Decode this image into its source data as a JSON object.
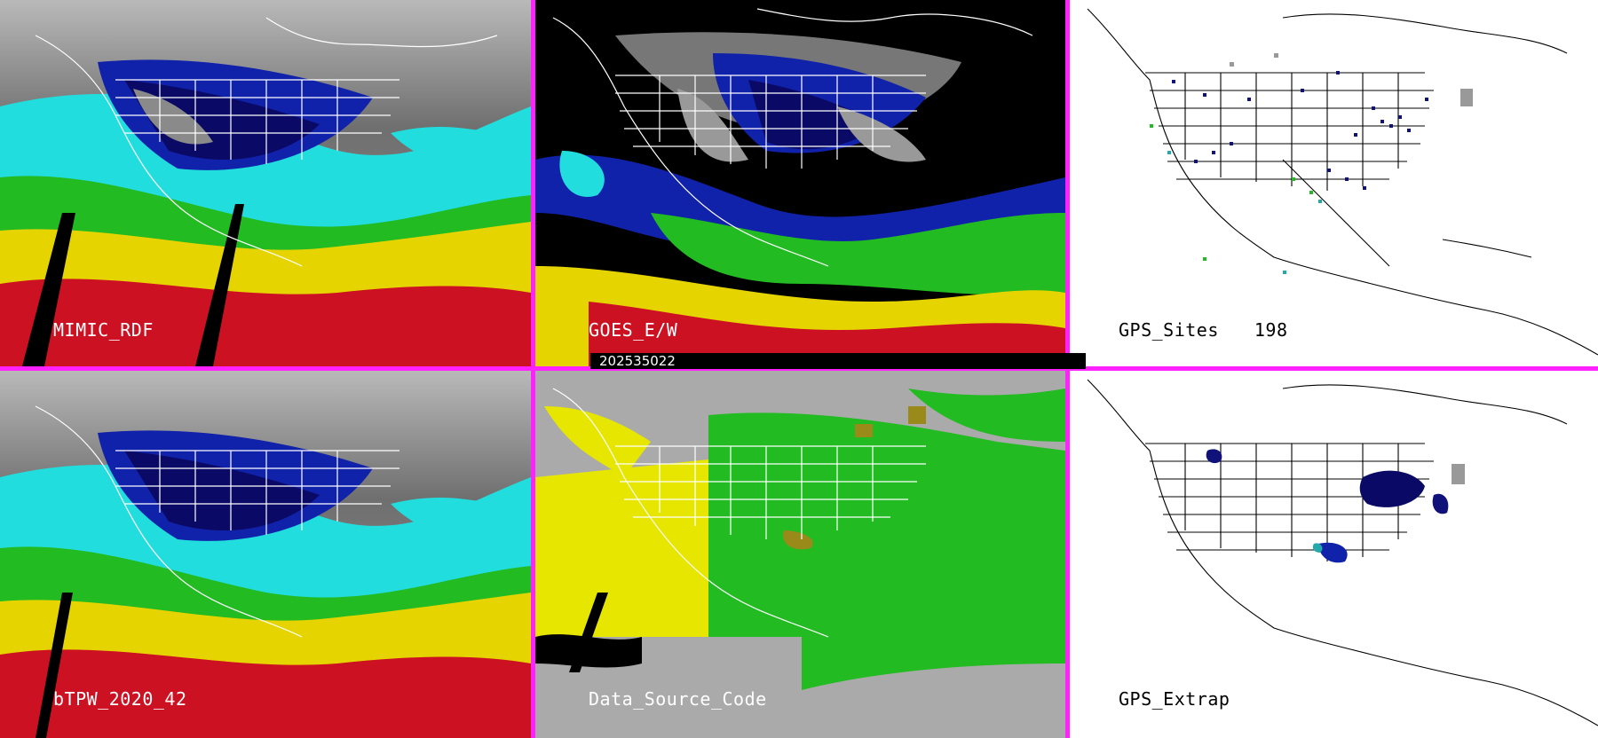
{
  "panels": [
    {
      "id": "mimic",
      "label": "MIMIC_RDF"
    },
    {
      "id": "goes",
      "label": "GOES_E/W"
    },
    {
      "id": "gps-sites",
      "label": "GPS_Sites",
      "count": "198"
    },
    {
      "id": "btpw",
      "label": "bTPW_2020_42"
    },
    {
      "id": "dsc",
      "label": "Data_Source_Code"
    },
    {
      "id": "gps-extrap",
      "label": "GPS_Extrap"
    }
  ],
  "timestamp": "202535022",
  "colors": {
    "separator": "#ff22ff",
    "deep_moisture": "#cc1122",
    "high": "#e6d400",
    "mid": "#22bb22",
    "low_mid": "#22dddd",
    "low": "#1122aa",
    "dry": "#999999",
    "background": "#000000"
  }
}
